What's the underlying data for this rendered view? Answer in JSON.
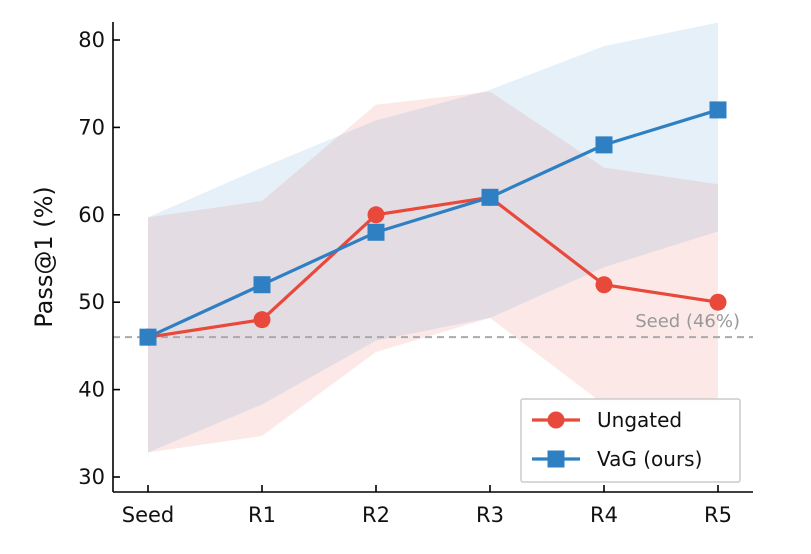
{
  "chart_data": {
    "type": "line",
    "title": "",
    "xlabel": "",
    "ylabel": "Pass@1 (%)",
    "categories": [
      "Seed",
      "R1",
      "R2",
      "R3",
      "R4",
      "R5"
    ],
    "ylim": [
      28,
      82
    ],
    "yticks": [
      30,
      40,
      50,
      60,
      70,
      80
    ],
    "grid": false,
    "legend_placement": "bottom-right",
    "series": [
      {
        "name": "Ungated",
        "color": "#e8493b",
        "marker": "circle",
        "values": [
          46,
          48,
          60,
          62,
          52,
          50
        ],
        "band_lower": [
          32.8,
          34.7,
          44.3,
          48.2,
          38.3,
          38.4
        ],
        "band_upper": [
          59.7,
          61.6,
          72.6,
          74.1,
          65.4,
          63.5
        ]
      },
      {
        "name": "VaG (ours)",
        "color": "#2e80c2",
        "marker": "square",
        "values": [
          46,
          52,
          58,
          62,
          68,
          72
        ],
        "band_lower": [
          32.8,
          38.3,
          45.6,
          48.2,
          54.0,
          58.1
        ],
        "band_upper": [
          59.7,
          65.4,
          70.8,
          74.3,
          79.3,
          82.0
        ]
      }
    ],
    "reference_line": {
      "y": 46,
      "label": "Seed (46%)",
      "color": "#aaaaaa"
    }
  }
}
